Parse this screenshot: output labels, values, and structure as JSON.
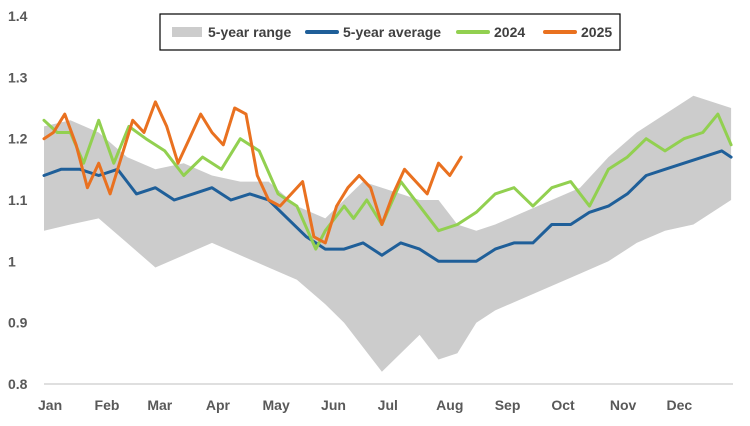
{
  "chart_data": {
    "type": "line",
    "title": "",
    "xlabel": "",
    "ylabel": "",
    "ylim": [
      0.8,
      1.4
    ],
    "y_ticks": [
      "0.8",
      "0.9",
      "1",
      "1.1",
      "1.2",
      "1.3",
      "1.4"
    ],
    "months": [
      "Jan",
      "Feb",
      "Mar",
      "Apr",
      "May",
      "Jun",
      "Jul",
      "Aug",
      "Sep",
      "Oct",
      "Nov",
      "Dec"
    ],
    "legend_position": "top",
    "grid": false,
    "legend": [
      {
        "name": "5-year range",
        "color": "#cccccc"
      },
      {
        "name": "5-year average",
        "color": "#1f5f99"
      },
      {
        "name": "2024",
        "color": "#92d050"
      },
      {
        "name": "2025",
        "color": "#e97120"
      }
    ],
    "range_band": {
      "name": "5-year range",
      "x": [
        1,
        15,
        30,
        45,
        60,
        75,
        90,
        105,
        120,
        135,
        150,
        160,
        170,
        180,
        190,
        200,
        210,
        220,
        230,
        240,
        255,
        270,
        285,
        300,
        315,
        330,
        345,
        365
      ],
      "upper": [
        1.22,
        1.23,
        1.21,
        1.17,
        1.15,
        1.16,
        1.14,
        1.13,
        1.13,
        1.09,
        1.07,
        1.1,
        1.13,
        1.12,
        1.11,
        1.1,
        1.1,
        1.06,
        1.05,
        1.06,
        1.08,
        1.1,
        1.12,
        1.17,
        1.21,
        1.24,
        1.27,
        1.25
      ],
      "lower": [
        1.05,
        1.06,
        1.07,
        1.03,
        0.99,
        1.01,
        1.03,
        1.01,
        0.99,
        0.97,
        0.93,
        0.9,
        0.86,
        0.82,
        0.85,
        0.88,
        0.84,
        0.85,
        0.9,
        0.92,
        0.94,
        0.96,
        0.98,
        1.0,
        1.03,
        1.05,
        1.06,
        1.1
      ]
    },
    "series": [
      {
        "name": "5-year average",
        "color": "#1f5f99",
        "x": [
          1,
          10,
          20,
          30,
          40,
          50,
          60,
          70,
          80,
          90,
          100,
          110,
          120,
          130,
          140,
          150,
          160,
          170,
          180,
          190,
          200,
          210,
          220,
          230,
          240,
          250,
          260,
          270,
          280,
          290,
          300,
          310,
          320,
          330,
          340,
          350,
          360,
          365
        ],
        "y": [
          1.14,
          1.15,
          1.15,
          1.14,
          1.15,
          1.11,
          1.12,
          1.1,
          1.11,
          1.12,
          1.1,
          1.11,
          1.1,
          1.07,
          1.04,
          1.02,
          1.02,
          1.03,
          1.01,
          1.03,
          1.02,
          1.0,
          1.0,
          1.0,
          1.02,
          1.03,
          1.03,
          1.06,
          1.06,
          1.08,
          1.09,
          1.11,
          1.14,
          1.15,
          1.16,
          1.17,
          1.18,
          1.17
        ]
      },
      {
        "name": "2024",
        "color": "#92d050",
        "x": [
          1,
          8,
          15,
          22,
          30,
          38,
          46,
          55,
          65,
          75,
          85,
          95,
          105,
          115,
          125,
          135,
          145,
          150,
          155,
          160,
          165,
          172,
          180,
          190,
          200,
          210,
          220,
          230,
          240,
          250,
          260,
          270,
          280,
          290,
          300,
          310,
          320,
          330,
          340,
          350,
          358,
          365
        ],
        "y": [
          1.23,
          1.21,
          1.21,
          1.16,
          1.23,
          1.16,
          1.22,
          1.2,
          1.18,
          1.14,
          1.17,
          1.15,
          1.2,
          1.18,
          1.11,
          1.09,
          1.02,
          1.05,
          1.07,
          1.09,
          1.07,
          1.1,
          1.06,
          1.13,
          1.09,
          1.05,
          1.06,
          1.08,
          1.11,
          1.12,
          1.09,
          1.12,
          1.13,
          1.09,
          1.15,
          1.17,
          1.2,
          1.18,
          1.2,
          1.21,
          1.24,
          1.19
        ]
      },
      {
        "name": "2025",
        "color": "#e97120",
        "x": [
          1,
          6,
          12,
          18,
          24,
          30,
          36,
          42,
          48,
          54,
          60,
          66,
          72,
          78,
          84,
          90,
          96,
          102,
          108,
          114,
          120,
          126,
          132,
          138,
          144,
          150,
          156,
          162,
          168,
          174,
          180,
          186,
          192,
          198,
          204,
          210,
          216,
          222
        ],
        "y": [
          1.2,
          1.21,
          1.24,
          1.19,
          1.12,
          1.16,
          1.11,
          1.17,
          1.23,
          1.21,
          1.26,
          1.22,
          1.16,
          1.2,
          1.24,
          1.21,
          1.19,
          1.25,
          1.24,
          1.14,
          1.1,
          1.09,
          1.11,
          1.13,
          1.04,
          1.03,
          1.09,
          1.12,
          1.14,
          1.12,
          1.06,
          1.11,
          1.15,
          1.13,
          1.11,
          1.16,
          1.14,
          1.17
        ]
      }
    ]
  }
}
